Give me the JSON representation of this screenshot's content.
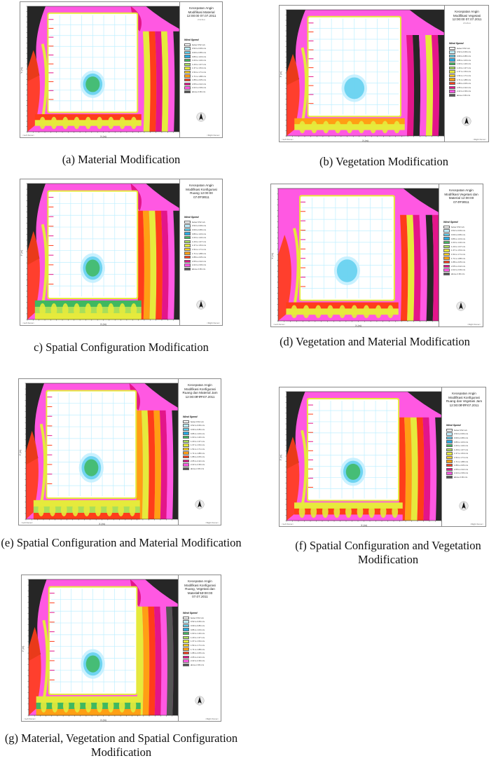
{
  "palette": [
    "#ffffff",
    "#bfefff",
    "#5fcfef",
    "#29a9e2",
    "#40b860",
    "#a9df5a",
    "#e6ea3c",
    "#ffd319",
    "#ff9f14",
    "#ff3d1a",
    "#e3158a",
    "#ff58e2",
    "#555555",
    "#262626"
  ],
  "panels": [
    {
      "id": "a",
      "caption": "(a) Material Modification",
      "title": "Kecepatan Angin Modifikasi Material 12:00:00 07.07.2011",
      "subtitle": "z=1.6 m",
      "legend_title": "Wind Speed",
      "legend_items": [
        "below 0.52 m/s",
        "0.52 to 0.69 m/s",
        "0.69 to 0.86 m/s",
        "0.86 to 1.03 m/s",
        "1.03 to 1.20 m/s",
        "1.20 to 1.37 m/s",
        "1.37 to 1.54 m/s",
        "1.54 to 1.71 m/s",
        "1.71 to 1.88 m/s",
        "1.88 to 2.05 m/s",
        "2.05 to 2.22 m/s",
        "2.22 to 2.39 m/s",
        "above 2.39 m/s"
      ],
      "y_axis": "Y (m)",
      "x_axis": "X (m)",
      "footer_left": "<Left frame>",
      "footer_right": "<Right frame>"
    },
    {
      "id": "b",
      "caption": "(b) Vegetation Modification",
      "title": "Kecepatan Angin Modifikasi Vegetasi 12:00:00 07.07.2011",
      "subtitle": "z=1.6 m",
      "legend_title": "Wind Speed",
      "legend_items": [
        "below 0.52 m/s",
        "0.52 to 0.69 m/s",
        "0.69 to 0.86 m/s",
        "0.86 to 1.03 m/s",
        "1.03 to 1.20 m/s",
        "1.20 to 1.37 m/s",
        "1.37 to 1.54 m/s",
        "1.54 to 1.71 m/s",
        "1.71 to 1.88 m/s",
        "1.88 to 2.05 m/s",
        "2.05 to 2.22 m/s",
        "2.22 to 2.39 m/s",
        "above 2.39 m/s"
      ],
      "y_axis": "Y (m)",
      "x_axis": "X (m)",
      "footer_left": "<Left frame>",
      "footer_right": "<Right frame>"
    },
    {
      "id": "c",
      "caption": "c) Spatial Configuration Modification",
      "title": "Kecepatan Angin Modifikasi Konfigurasi Ruang 12:00:00 07.07.2011",
      "subtitle": "z=1.6 m",
      "legend_title": "Wind Speed",
      "legend_items": [
        "below 0.52 m/s",
        "0.52 to 0.69 m/s",
        "0.69 to 0.86 m/s",
        "0.86 to 1.03 m/s",
        "1.03 to 1.20 m/s",
        "1.20 to 1.37 m/s",
        "1.37 to 1.54 m/s",
        "1.54 to 1.71 m/s",
        "1.71 to 1.88 m/s",
        "1.88 to 2.05 m/s",
        "2.05 to 2.22 m/s",
        "2.22 to 2.39 m/s",
        "above 2.39 m/s"
      ],
      "y_axis": "Y (m)",
      "x_axis": "X (m)",
      "footer_left": "<Left frame>",
      "footer_right": "<Right frame>"
    },
    {
      "id": "d",
      "caption": "(d) Vegetation and Material Modification",
      "title": "Kecepatan Angin Modifikasi Vegetasi dan Material 12:00:00 07.07.2011",
      "subtitle": "z=1.6 m",
      "legend_title": "Wind Speed",
      "legend_items": [
        "below 0.52 m/s",
        "0.52 to 0.69 m/s",
        "0.69 to 0.86 m/s",
        "0.86 to 1.03 m/s",
        "1.03 to 1.20 m/s",
        "1.20 to 1.37 m/s",
        "1.37 to 1.54 m/s",
        "1.54 to 1.71 m/s",
        "1.71 to 1.88 m/s",
        "1.88 to 2.05 m/s",
        "2.05 to 2.22 m/s",
        "2.22 to 2.39 m/s",
        "above 2.39 m/s"
      ],
      "y_axis": "Y (m)",
      "x_axis": "X (m)",
      "footer_left": "<Left frame>",
      "footer_right": "<Right frame>"
    },
    {
      "id": "e",
      "caption": "(e) Spatial Configuration and Material Modification",
      "title": "Kecepatan Angin Modifikasi Konfigurasi Ruang dan Material Jam 12:00:00 07.07.2011",
      "subtitle": "z=1.6 m",
      "legend_title": "Wind Speed",
      "legend_items": [
        "below 0.52 m/s",
        "0.52 to 0.69 m/s",
        "0.69 to 0.86 m/s",
        "0.86 to 1.03 m/s",
        "1.03 to 1.20 m/s",
        "1.20 to 1.37 m/s",
        "1.37 to 1.54 m/s",
        "1.54 to 1.71 m/s",
        "1.71 to 1.88 m/s",
        "1.88 to 2.05 m/s",
        "2.05 to 2.22 m/s",
        "2.22 to 2.39 m/s",
        "above 2.39 m/s"
      ],
      "y_axis": "Y (m)",
      "x_axis": "X (m)",
      "footer_left": "<Left frame>",
      "footer_right": "<Right frame>"
    },
    {
      "id": "f",
      "caption": "(f) Spatial Configuration and Vegetation Modification",
      "title": "Kecepatan Angin Modifikasi Konfigurasi Ruang dan Vegetasi Jam 12:00:00 07.07.2011",
      "subtitle": "z=1.6 m",
      "legend_title": "Wind Speed",
      "legend_items": [
        "below 0.52 m/s",
        "0.52 to 0.69 m/s",
        "0.69 to 0.86 m/s",
        "0.86 to 1.03 m/s",
        "1.03 to 1.20 m/s",
        "1.20 to 1.37 m/s",
        "1.37 to 1.54 m/s",
        "1.54 to 1.71 m/s",
        "1.71 to 1.88 m/s",
        "1.88 to 2.05 m/s",
        "2.05 to 2.22 m/s",
        "2.22 to 2.39 m/s",
        "above 2.39 m/s"
      ],
      "y_axis": "Y (m)",
      "x_axis": "X (m)",
      "footer_left": "<Left frame>",
      "footer_right": "<Right frame>"
    },
    {
      "id": "g",
      "caption": "(g) Material, Vegetation and Spatial Configuration Modification",
      "title": "Kecepatan Angin Modifikasi Konfigurasi Ruang, Vegetasi dan Material 12:00:00 07.07.2011",
      "subtitle": "z=1.6 m",
      "legend_title": "Wind Speed",
      "legend_items": [
        "below 0.52 m/s",
        "0.52 to 0.69 m/s",
        "0.69 to 0.86 m/s",
        "0.86 to 1.03 m/s",
        "1.03 to 1.20 m/s",
        "1.20 to 1.37 m/s",
        "1.37 to 1.54 m/s",
        "1.54 to 1.71 m/s",
        "1.71 to 1.88 m/s",
        "1.88 to 2.05 m/s",
        "2.05 to 2.22 m/s",
        "2.22 to 2.39 m/s",
        "above 2.39 m/s"
      ],
      "y_axis": "Y (m)",
      "x_axis": "X (m)",
      "footer_left": "<Left frame>",
      "footer_right": "<Right frame>"
    }
  ]
}
